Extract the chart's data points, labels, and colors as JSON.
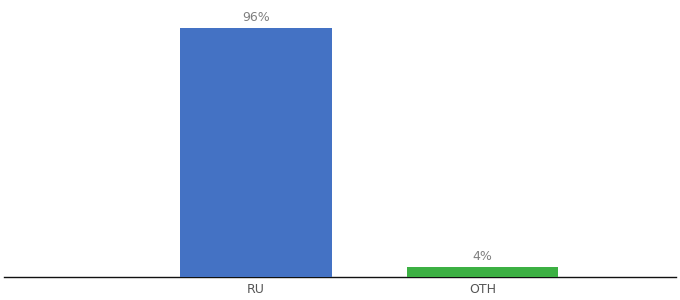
{
  "categories": [
    "RU",
    "OTH"
  ],
  "values": [
    96,
    4
  ],
  "bar_colors": [
    "#4472c4",
    "#3cb043"
  ],
  "value_labels": [
    "96%",
    "4%"
  ],
  "background_color": "#ffffff",
  "ylim": [
    0,
    105
  ],
  "bar_width": 0.18,
  "figsize": [
    6.8,
    3.0
  ],
  "dpi": 100,
  "label_fontsize": 9,
  "tick_fontsize": 9,
  "spine_color": "#111111",
  "x_positions": [
    0.35,
    0.62
  ]
}
